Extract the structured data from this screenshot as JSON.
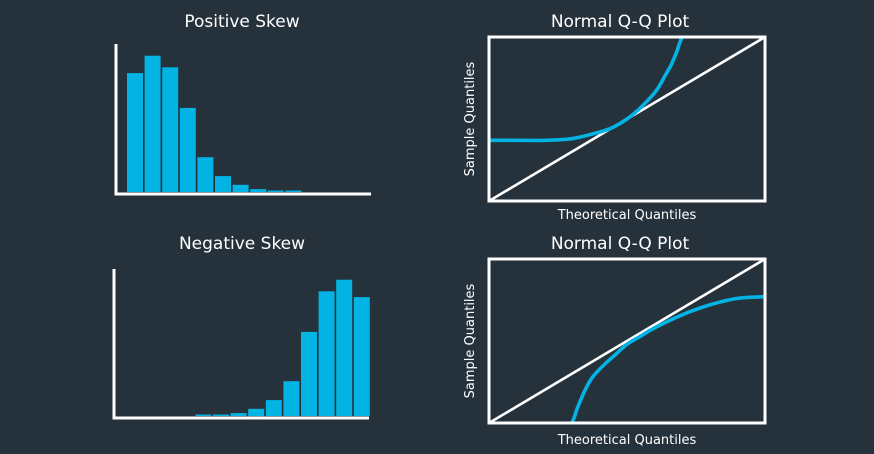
{
  "colors": {
    "background": "#26323b",
    "bar": "#02b3e4",
    "curve": "#02b3e4",
    "axis": "#ffffff",
    "text": "#ffffff"
  },
  "chart_data": [
    {
      "id": "positive-skew",
      "type": "bar",
      "title": "Positive Skew",
      "xlabel": "",
      "ylabel": "",
      "values": [
        0.82,
        0.94,
        0.86,
        0.58,
        0.24,
        0.11,
        0.05,
        0.02,
        0.01,
        0.005,
        0,
        0,
        0,
        0
      ],
      "ylim": [
        0,
        1
      ]
    },
    {
      "id": "qq-positive",
      "type": "line",
      "title": "Normal Q-Q Plot",
      "xlabel": "Theoretical Quantiles",
      "ylabel": "Sample Quantiles",
      "xlim": [
        0,
        1
      ],
      "ylim": [
        0,
        1
      ],
      "series": [
        {
          "role": "reference",
          "x": [
            0,
            1
          ],
          "y": [
            0,
            1
          ]
        },
        {
          "role": "sample",
          "x": [
            0,
            0.1,
            0.2,
            0.3,
            0.4,
            0.45,
            0.5,
            0.55,
            0.6,
            0.62,
            0.64,
            0.66,
            0.68,
            0.69,
            0.7
          ],
          "y": [
            0.37,
            0.37,
            0.37,
            0.38,
            0.42,
            0.45,
            0.5,
            0.57,
            0.66,
            0.71,
            0.77,
            0.83,
            0.91,
            0.96,
            1.0
          ]
        }
      ]
    },
    {
      "id": "negative-skew",
      "type": "bar",
      "title": "Negative Skew",
      "xlabel": "",
      "ylabel": "",
      "values": [
        0,
        0,
        0,
        0,
        0.005,
        0.01,
        0.02,
        0.05,
        0.11,
        0.24,
        0.58,
        0.86,
        0.94,
        0.82
      ],
      "ylim": [
        0,
        1
      ]
    },
    {
      "id": "qq-negative",
      "type": "line",
      "title": "Normal Q-Q Plot",
      "xlabel": "Theoretical Quantiles",
      "ylabel": "Sample Quantiles",
      "xlim": [
        0,
        1
      ],
      "ylim": [
        0,
        1
      ],
      "series": [
        {
          "role": "reference",
          "x": [
            0,
            1
          ],
          "y": [
            0,
            1
          ]
        },
        {
          "role": "sample",
          "x": [
            0.3,
            0.31,
            0.32,
            0.34,
            0.36,
            0.38,
            0.42,
            0.46,
            0.5,
            0.55,
            0.6,
            0.7,
            0.8,
            0.9,
            1.0
          ],
          "y": [
            0.0,
            0.04,
            0.09,
            0.17,
            0.24,
            0.29,
            0.36,
            0.42,
            0.48,
            0.53,
            0.58,
            0.66,
            0.72,
            0.76,
            0.77
          ]
        }
      ]
    }
  ]
}
